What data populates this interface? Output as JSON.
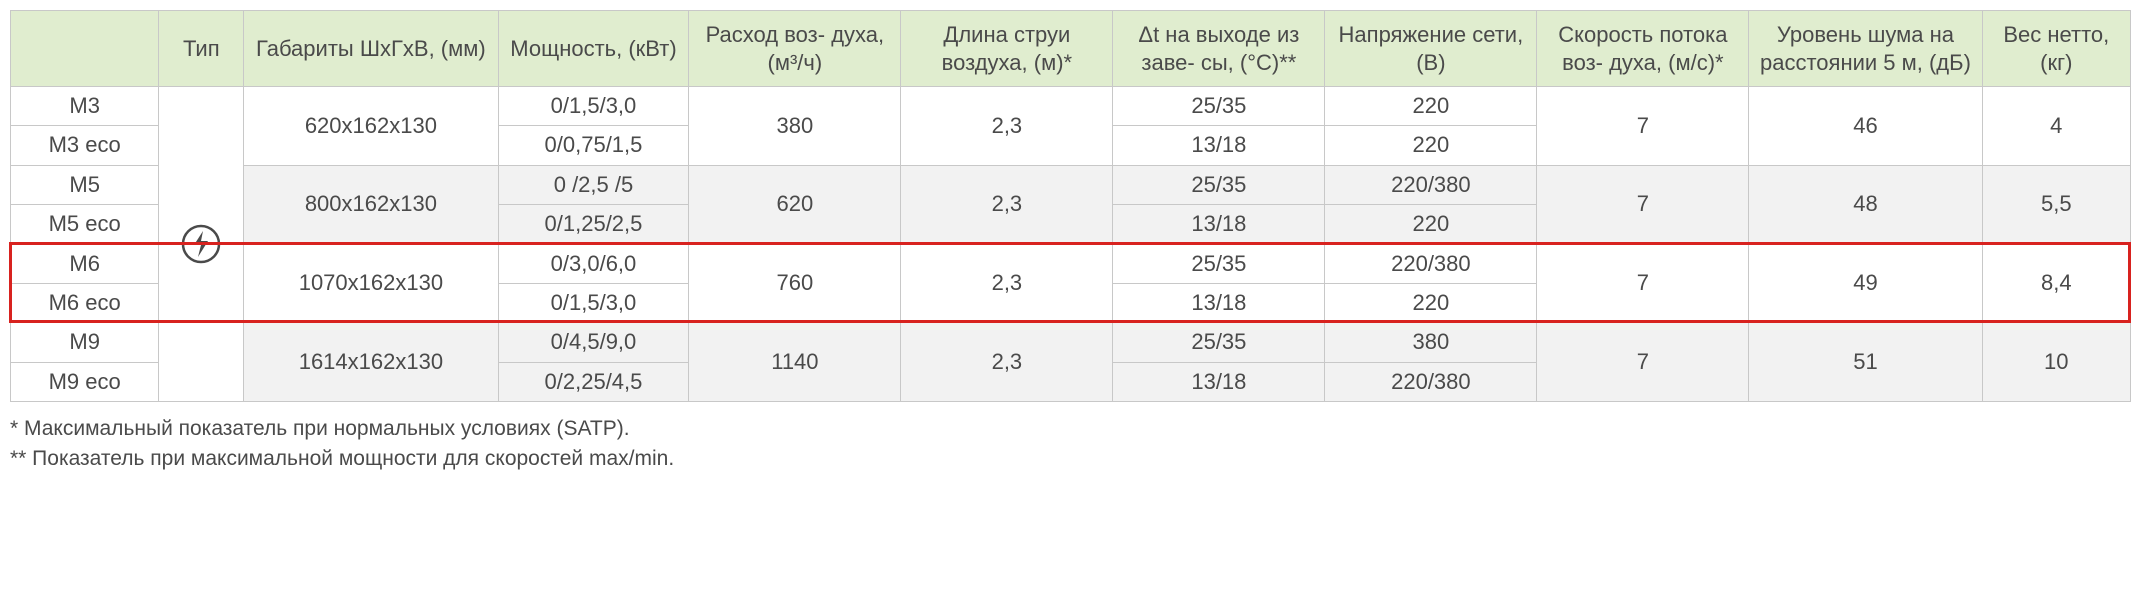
{
  "headers": {
    "blank": "",
    "type": "Тип",
    "dims": "Габариты ШхГхВ, (мм)",
    "power": "Мощность, (кВт)",
    "airflow": "Расход воз-\nдуха, (м³/ч)",
    "jet": "Длина струи воздуха, (м)*",
    "dt": "Δt на выходе из заве-\nсы, (°С)**",
    "voltage": "Напряжение сети, (В)",
    "speed": "Скорость потока воз-\nдуха, (м/с)*",
    "noise": "Уровень шума на расстоянии 5 м, (дБ)",
    "weight": "Вес нетто, (кг)"
  },
  "groups": [
    {
      "alt": false,
      "rows": [
        {
          "model": "М3",
          "power": "0/1,5/3,0",
          "dt": "25/35",
          "voltage": "220"
        },
        {
          "model": "М3 eco",
          "power": "0/0,75/1,5",
          "dt": "13/18",
          "voltage": "220"
        }
      ],
      "dims": "620х162х130",
      "airflow": "380",
      "jet": "2,3",
      "speed": "7",
      "noise": "46",
      "weight": "4"
    },
    {
      "alt": true,
      "rows": [
        {
          "model": "М5",
          "power": "0 /2,5 /5",
          "dt": "25/35",
          "voltage": "220/380"
        },
        {
          "model": "М5 eco",
          "power": "0/1,25/2,5",
          "dt": "13/18",
          "voltage": "220"
        }
      ],
      "dims": "800х162х130",
      "airflow": "620",
      "jet": "2,3",
      "speed": "7",
      "noise": "48",
      "weight": "5,5"
    },
    {
      "alt": false,
      "highlight": true,
      "rows": [
        {
          "model": "М6",
          "power": "0/3,0/6,0",
          "dt": "25/35",
          "voltage": "220/380"
        },
        {
          "model": "М6 eco",
          "power": "0/1,5/3,0",
          "dt": "13/18",
          "voltage": "220"
        }
      ],
      "dims": "1070х162х130",
      "airflow": "760",
      "jet": "2,3",
      "speed": "7",
      "noise": "49",
      "weight": "8,4"
    },
    {
      "alt": true,
      "rows": [
        {
          "model": "М9",
          "power": "0/4,5/9,0",
          "dt": "25/35",
          "voltage": "380"
        },
        {
          "model": "М9 eco",
          "power": "0/2,25/4,5",
          "dt": "13/18",
          "voltage": "220/380"
        }
      ],
      "dims": "1614х162х130",
      "airflow": "1140",
      "jet": "2,3",
      "speed": "7",
      "noise": "51",
      "weight": "10"
    }
  ],
  "footnotes": {
    "f1": " * Максимальный показатель при нормальных условиях (SATP).",
    "f2": "** Показатель при максимальной мощности для скоростей max/min."
  },
  "colors": {
    "header_bg": "#e0edcf",
    "border": "#c8c8c8",
    "text": "#4a4a4a",
    "alt_bg": "#f2f2f2",
    "highlight": "#d8221f"
  },
  "icon": "electric-icon"
}
